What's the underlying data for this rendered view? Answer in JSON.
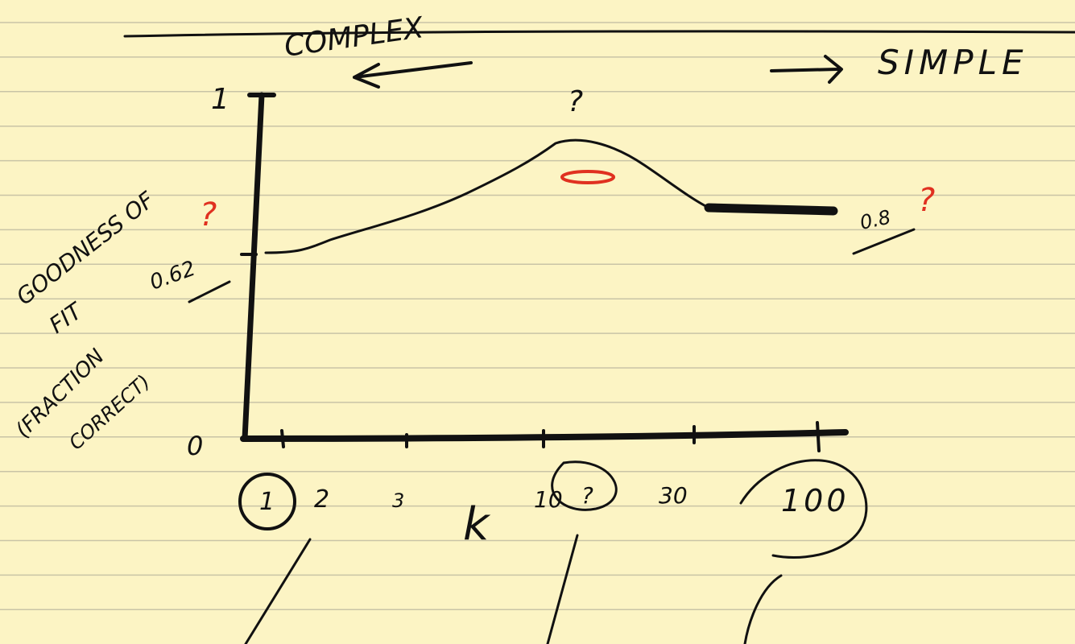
{
  "header": {
    "complex": "COMPLEX",
    "simple": "SIMPLE"
  },
  "y_axis": {
    "label": [
      "GOODNESS OF",
      "FIT",
      "(FRACTION",
      "CORRECT)"
    ],
    "ticks": [
      "1",
      "0.62",
      "0"
    ],
    "note": "?"
  },
  "x_axis": {
    "label": "k",
    "ticks": [
      "1",
      "2",
      "3",
      "10",
      "?",
      "30",
      "100"
    ]
  },
  "annotations": {
    "peak": "?",
    "plateau": "0.8",
    "plateau_mark": "?"
  }
}
